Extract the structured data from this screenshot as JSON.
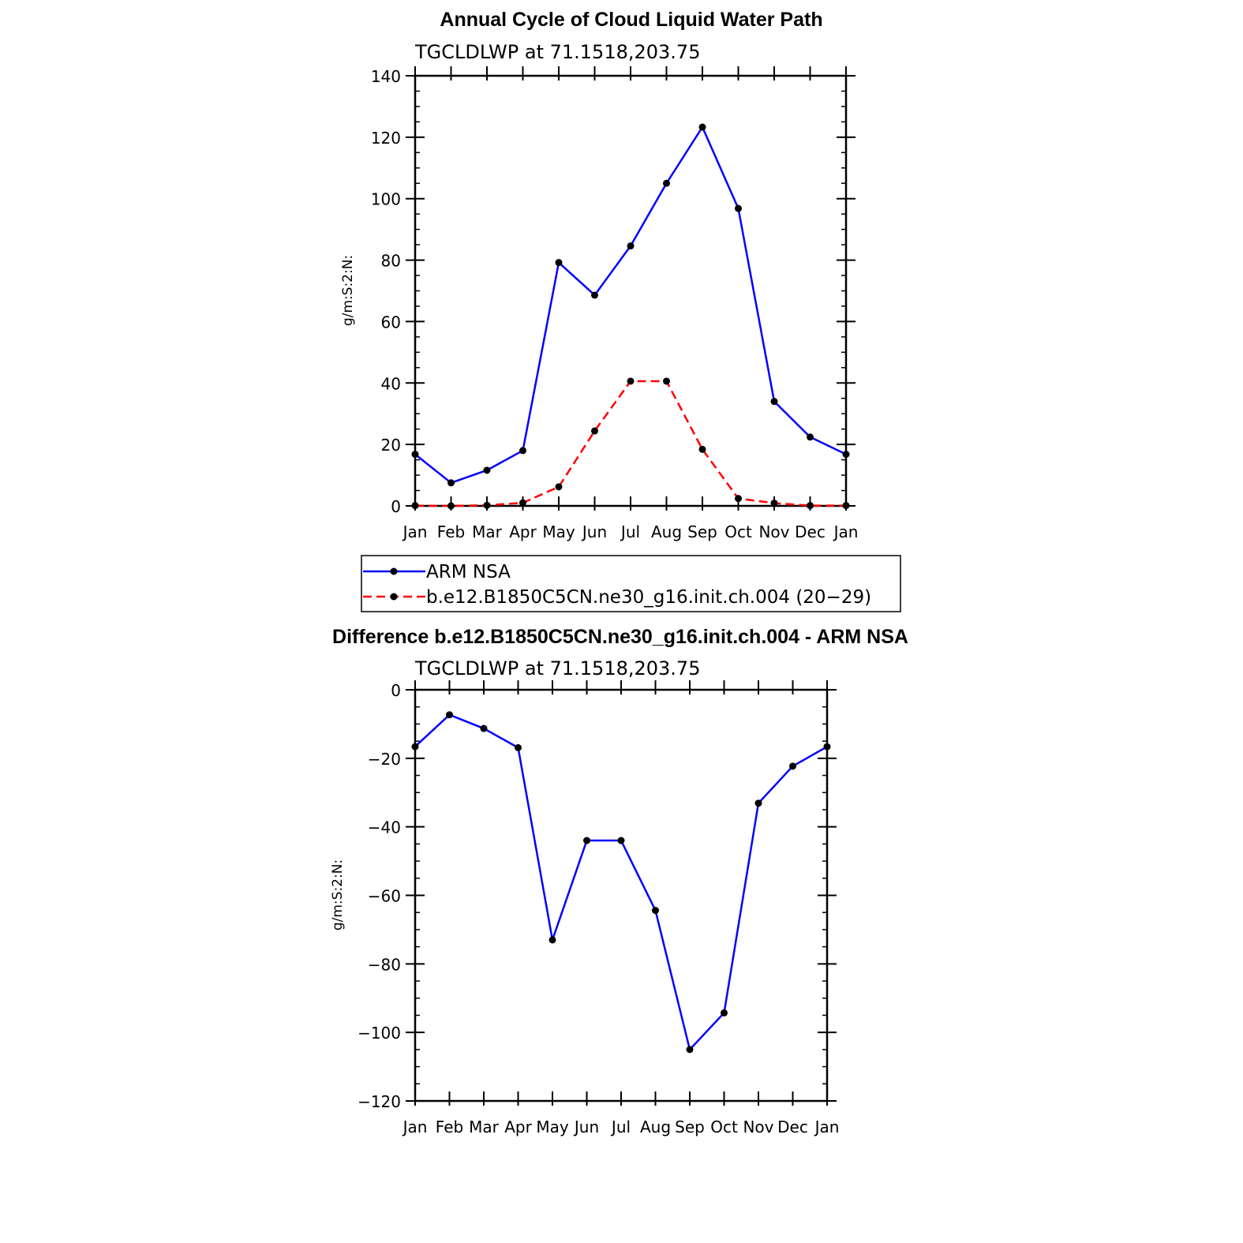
{
  "chart_data": [
    {
      "type": "line",
      "title": "Annual Cycle of Cloud Liquid Water Path",
      "subtitle": "TGCLDLWP  at  71.1518,203.75",
      "ylabel": "g/m:S:2:N:",
      "xlabel": "",
      "ylim": [
        0,
        140
      ],
      "yticks": [
        0,
        20,
        40,
        60,
        80,
        100,
        120,
        140
      ],
      "categories": [
        "Jan",
        "Feb",
        "Mar",
        "Apr",
        "May",
        "Jun",
        "Jul",
        "Aug",
        "Sep",
        "Oct",
        "Nov",
        "Dec",
        "Jan"
      ],
      "series": [
        {
          "name": "ARM  NSA",
          "color": "#0000ff",
          "dash": "solid",
          "values": [
            16.8,
            7.5,
            11.6,
            18.0,
            79.2,
            68.6,
            84.6,
            105.0,
            123.3,
            96.8,
            34.0,
            22.4,
            16.8
          ]
        },
        {
          "name": "b.e12.B1850C5CN.ne30_g16.init.ch.004 (20−29)",
          "color": "#ff0000",
          "dash": "dashed",
          "values": [
            0.1,
            0.0,
            0.2,
            1.0,
            6.2,
            24.4,
            40.6,
            40.6,
            18.4,
            2.4,
            0.9,
            0.1,
            0.1
          ]
        }
      ],
      "legend": "below"
    },
    {
      "type": "line",
      "title": "Difference b.e12.B1850C5CN.ne30_g16.init.ch.004 - ARM NSA",
      "subtitle": "TGCLDLWP  at  71.1518,203.75",
      "ylabel": "g/m:S:2:N:",
      "xlabel": "",
      "ylim": [
        -120,
        0
      ],
      "yticks": [
        0,
        -20,
        -40,
        -60,
        -80,
        -100,
        -120
      ],
      "ytick_labels": [
        "0",
        "−20",
        "−40",
        "−60",
        "−80",
        "−100",
        "−120"
      ],
      "categories": [
        "Jan",
        "Feb",
        "Mar",
        "Apr",
        "May",
        "Jun",
        "Jul",
        "Aug",
        "Sep",
        "Oct",
        "Nov",
        "Dec",
        "Jan"
      ],
      "series": [
        {
          "color": "#0000ff",
          "dash": "solid",
          "values": [
            -16.6,
            -7.3,
            -11.3,
            -16.9,
            -73.0,
            -44.0,
            -44.0,
            -64.4,
            -105.0,
            -94.3,
            -33.1,
            -22.3,
            -16.6
          ]
        }
      ]
    }
  ]
}
